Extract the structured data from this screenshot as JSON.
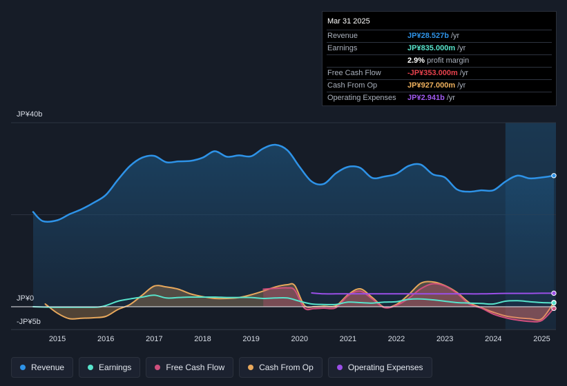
{
  "tooltip": {
    "date": "Mar 31 2025",
    "rows": [
      {
        "label": "Revenue",
        "value": "JP¥28.527b",
        "unit": "/yr",
        "color": "#2e93e8"
      },
      {
        "label": "Earnings",
        "value": "JP¥835.000m",
        "unit": "/yr",
        "color": "#58e4cc"
      },
      {
        "label": "",
        "value": "2.9%",
        "unit": "profit margin",
        "color": "#ffffff"
      },
      {
        "label": "Free Cash Flow",
        "value": "-JP¥353.000m",
        "unit": "/yr",
        "color": "#e8424d"
      },
      {
        "label": "Cash From Op",
        "value": "JP¥927.000m",
        "unit": "/yr",
        "color": "#f0b25e"
      },
      {
        "label": "Operating Expenses",
        "value": "JP¥2.941b",
        "unit": "/yr",
        "color": "#a15af0"
      }
    ]
  },
  "legend": [
    {
      "label": "Revenue",
      "color": "#2e93e8"
    },
    {
      "label": "Earnings",
      "color": "#58e4cc"
    },
    {
      "label": "Free Cash Flow",
      "color": "#cf4f7d"
    },
    {
      "label": "Cash From Op",
      "color": "#e8a85c"
    },
    {
      "label": "Operating Expenses",
      "color": "#9b4fe8"
    }
  ],
  "chart_data": {
    "type": "area",
    "title": "",
    "unit": "JP¥ billions",
    "ylim": [
      -5,
      40
    ],
    "y_tick_labels": [
      {
        "value": 40,
        "label": "JP¥40b"
      },
      {
        "value": 0,
        "label": "JP¥0"
      },
      {
        "value": -5,
        "label": "-JP¥5b"
      }
    ],
    "x_ticks": [
      2015,
      2016,
      2017,
      2018,
      2019,
      2020,
      2021,
      2022,
      2023,
      2024,
      2025
    ],
    "xlim": [
      2014.35,
      2025.45
    ],
    "highlight_from": 2024.25,
    "series": [
      {
        "name": "Revenue",
        "color": "#2e93e8",
        "fill": true,
        "x": [
          2014.5,
          2014.7,
          2015.0,
          2015.25,
          2015.5,
          2015.75,
          2016.0,
          2016.25,
          2016.5,
          2016.75,
          2017.0,
          2017.25,
          2017.5,
          2017.75,
          2018.0,
          2018.25,
          2018.5,
          2018.75,
          2019.0,
          2019.25,
          2019.5,
          2019.75,
          2020.0,
          2020.25,
          2020.5,
          2020.75,
          2021.0,
          2021.25,
          2021.5,
          2021.75,
          2022.0,
          2022.25,
          2022.5,
          2022.75,
          2023.0,
          2023.25,
          2023.5,
          2023.75,
          2024.0,
          2024.25,
          2024.5,
          2024.75,
          2025.0,
          2025.25
        ],
        "values": [
          20.6,
          18.6,
          18.8,
          20.1,
          21.2,
          22.6,
          24.3,
          27.6,
          30.6,
          32.4,
          32.8,
          31.4,
          31.6,
          31.7,
          32.4,
          33.8,
          32.6,
          32.9,
          32.7,
          34.4,
          35.2,
          34.0,
          30.4,
          27.2,
          26.7,
          29.0,
          30.4,
          30.2,
          28.0,
          28.3,
          28.9,
          30.6,
          30.9,
          28.8,
          28.1,
          25.5,
          25.0,
          25.3,
          25.3,
          27.2,
          28.5,
          27.9,
          28.1,
          28.5
        ]
      },
      {
        "name": "Earnings",
        "color": "#58e4cc",
        "fill": false,
        "x": [
          2014.5,
          2015.0,
          2015.5,
          2015.9,
          2016.25,
          2016.5,
          2016.75,
          2017.0,
          2017.25,
          2017.5,
          2017.75,
          2018.0,
          2018.25,
          2018.5,
          2018.75,
          2019.0,
          2019.25,
          2019.5,
          2019.75,
          2020.0,
          2020.25,
          2020.5,
          2020.75,
          2021.0,
          2021.25,
          2021.5,
          2021.75,
          2022.0,
          2022.25,
          2022.5,
          2022.75,
          2023.0,
          2023.25,
          2023.5,
          2023.75,
          2024.0,
          2024.25,
          2024.5,
          2024.75,
          2025.0,
          2025.25
        ],
        "values": [
          0.0,
          -0.1,
          -0.1,
          0.0,
          1.2,
          1.7,
          2.1,
          2.5,
          1.9,
          2.0,
          2.1,
          2.1,
          2.1,
          2.0,
          2.0,
          2.0,
          1.8,
          1.9,
          1.9,
          1.2,
          0.6,
          0.5,
          0.5,
          1.0,
          0.9,
          0.8,
          1.0,
          1.1,
          1.6,
          1.7,
          1.5,
          1.2,
          0.9,
          0.8,
          0.7,
          0.6,
          1.2,
          1.3,
          1.1,
          0.9,
          0.84
        ]
      },
      {
        "name": "Free Cash Flow",
        "color": "#cf4f7d",
        "fill": true,
        "x": [
          2019.25,
          2019.5,
          2019.75,
          2019.9,
          2020.1,
          2020.3,
          2020.5,
          2020.75,
          2021.0,
          2021.25,
          2021.5,
          2021.75,
          2022.0,
          2022.25,
          2022.5,
          2022.75,
          2023.0,
          2023.25,
          2023.5,
          2023.75,
          2024.0,
          2024.25,
          2024.5,
          2024.75,
          2025.0,
          2025.25
        ],
        "values": [
          3.8,
          4.0,
          4.1,
          3.6,
          -0.3,
          -0.4,
          -0.3,
          -0.2,
          2.4,
          3.4,
          1.7,
          -0.2,
          0.3,
          1.8,
          3.9,
          5.0,
          4.5,
          2.9,
          0.6,
          -0.3,
          -1.6,
          -2.4,
          -2.9,
          -3.2,
          -3.0,
          -0.35
        ]
      },
      {
        "name": "Cash From Op",
        "color": "#e8a85c",
        "fill": true,
        "x": [
          2014.75,
          2015.0,
          2015.25,
          2015.5,
          2015.75,
          2016.0,
          2016.25,
          2016.5,
          2016.75,
          2017.0,
          2017.25,
          2017.5,
          2017.75,
          2018.0,
          2018.25,
          2018.5,
          2018.75,
          2019.0,
          2019.25,
          2019.5,
          2019.75,
          2019.9,
          2020.1,
          2020.3,
          2020.5,
          2020.75,
          2021.0,
          2021.25,
          2021.5,
          2021.75,
          2022.0,
          2022.25,
          2022.5,
          2022.75,
          2023.0,
          2023.25,
          2023.5,
          2023.75,
          2024.0,
          2024.25,
          2024.5,
          2024.75,
          2025.0,
          2025.25
        ],
        "values": [
          0.6,
          -1.4,
          -2.6,
          -2.5,
          -2.4,
          -2.1,
          -0.6,
          0.5,
          2.5,
          4.5,
          4.3,
          3.8,
          2.8,
          2.2,
          1.8,
          1.8,
          2.0,
          2.6,
          3.4,
          4.3,
          4.8,
          4.6,
          0.3,
          0.0,
          0.1,
          0.2,
          2.6,
          3.9,
          2.0,
          -0.1,
          0.5,
          2.6,
          5.1,
          5.4,
          4.6,
          3.1,
          0.9,
          -0.2,
          -1.2,
          -2.0,
          -2.4,
          -2.6,
          -2.6,
          0.93
        ]
      },
      {
        "name": "Operating Expenses",
        "color": "#9b4fe8",
        "fill": false,
        "x": [
          2020.25,
          2020.5,
          2020.75,
          2021.0,
          2021.25,
          2021.5,
          2021.75,
          2022.0,
          2022.25,
          2022.5,
          2022.75,
          2023.0,
          2023.25,
          2023.5,
          2023.75,
          2024.0,
          2024.25,
          2024.5,
          2024.75,
          2025.0,
          2025.25
        ],
        "values": [
          3.0,
          2.8,
          2.8,
          2.8,
          2.8,
          2.8,
          2.8,
          2.8,
          2.8,
          2.8,
          2.8,
          2.8,
          2.8,
          2.8,
          2.8,
          2.85,
          2.9,
          2.9,
          2.9,
          2.94,
          2.94
        ]
      }
    ]
  }
}
